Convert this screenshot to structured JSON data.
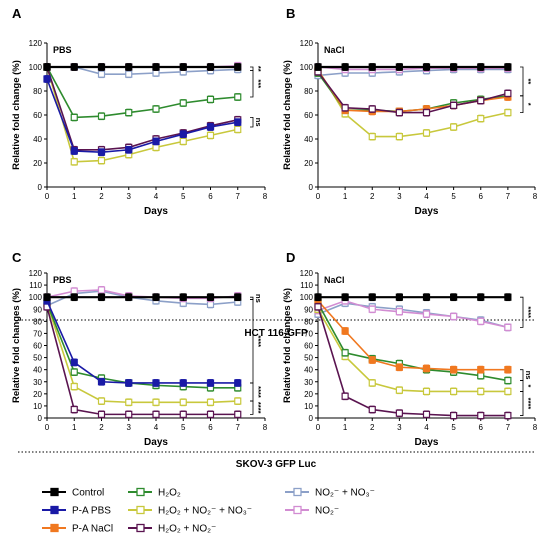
{
  "legend": [
    {
      "label": "Control",
      "color": "#000000"
    },
    {
      "label": "P-A PBS",
      "color": "#1a1aa6"
    },
    {
      "label": "P-A NaCl",
      "color": "#f07820"
    },
    {
      "label": "H₂O₂",
      "color": "#2e8b2e"
    },
    {
      "label": "H₂O₂ + NO₂⁻ + NO₃⁻",
      "color": "#c8c83c"
    },
    {
      "label": "H₂O₂ + NO₂⁻",
      "color": "#5a1450"
    },
    {
      "label": "NO₂⁻ + NO₃⁻",
      "color": "#8ca0c8"
    },
    {
      "label": "NO₂⁻",
      "color": "#d28cd2"
    }
  ],
  "sections": [
    {
      "label": "HCT 116-GFP"
    },
    {
      "label": "SKOV-3 GFP Luc"
    }
  ],
  "chart_data": [
    {
      "panel": "A",
      "condition": "PBS",
      "type": "line",
      "xlabel": "Days",
      "ylabel": "Relative fold change (%)",
      "xlim": [
        0,
        8
      ],
      "ylim": [
        0,
        120
      ],
      "xticks": [
        0,
        1,
        2,
        3,
        4,
        5,
        6,
        7,
        8
      ],
      "yticks": [
        0,
        20,
        40,
        60,
        80,
        100,
        120
      ],
      "x": [
        0,
        1,
        2,
        3,
        4,
        5,
        6,
        7
      ],
      "series": [
        {
          "name": "Control",
          "values": [
            100,
            100,
            100,
            100,
            100,
            100,
            100,
            100
          ]
        },
        {
          "name": "P-A PBS",
          "values": [
            90,
            30,
            29,
            31,
            38,
            44,
            50,
            54
          ]
        },
        {
          "name": "H₂O₂",
          "values": [
            100,
            58,
            59,
            62,
            65,
            70,
            73,
            75
          ]
        },
        {
          "name": "H₂O₂ + NO₂⁻ + NO₃⁻",
          "values": [
            100,
            21,
            22,
            27,
            33,
            38,
            43,
            48
          ]
        },
        {
          "name": "H₂O₂ + NO₂⁻",
          "values": [
            100,
            31,
            31,
            33,
            40,
            45,
            51,
            56
          ]
        },
        {
          "name": "NO₂⁻ + NO₃⁻",
          "values": [
            100,
            100,
            94,
            94,
            95,
            96,
            97,
            98
          ]
        },
        {
          "name": "NO₂⁻",
          "values": [
            100,
            100,
            100,
            100,
            100,
            100,
            100,
            101
          ]
        }
      ],
      "significance": [
        {
          "label": "**",
          "y_from": 100,
          "y_to": 97
        },
        {
          "label": "***",
          "y_from": 97,
          "y_to": 75
        },
        {
          "label": "ns",
          "y_from": 58,
          "y_to": 50
        }
      ]
    },
    {
      "panel": "B",
      "condition": "NaCl",
      "type": "line",
      "xlabel": "Days",
      "ylabel": "Relative fold change (%)",
      "xlim": [
        0,
        8
      ],
      "ylim": [
        0,
        120
      ],
      "xticks": [
        0,
        1,
        2,
        3,
        4,
        5,
        6,
        7,
        8
      ],
      "yticks": [
        0,
        20,
        40,
        60,
        80,
        100,
        120
      ],
      "x": [
        0,
        1,
        2,
        3,
        4,
        5,
        6,
        7
      ],
      "series": [
        {
          "name": "Control",
          "values": [
            100,
            100,
            100,
            100,
            100,
            100,
            100,
            100
          ]
        },
        {
          "name": "P-A NaCl",
          "values": [
            97,
            64,
            63,
            63,
            65,
            68,
            72,
            75
          ]
        },
        {
          "name": "H₂O₂",
          "values": [
            95,
            64,
            64,
            63,
            65,
            70,
            73,
            76
          ]
        },
        {
          "name": "H₂O₂ + NO₂⁻ + NO₃⁻",
          "values": [
            98,
            61,
            42,
            42,
            45,
            50,
            57,
            62
          ]
        },
        {
          "name": "H₂O₂ + NO₂⁻",
          "values": [
            96,
            66,
            65,
            62,
            62,
            68,
            72,
            78
          ]
        },
        {
          "name": "NO₂⁻ + NO₃⁻",
          "values": [
            93,
            95,
            95,
            96,
            97,
            98,
            98,
            98
          ]
        },
        {
          "name": "NO₂⁻",
          "values": [
            100,
            98,
            98,
            98,
            99,
            99,
            99,
            99
          ]
        }
      ],
      "significance": [
        {
          "label": "**",
          "y_from": 100,
          "y_to": 76
        },
        {
          "label": "*",
          "y_from": 76,
          "y_to": 62
        }
      ]
    },
    {
      "panel": "C",
      "condition": "PBS",
      "type": "line",
      "xlabel": "Days",
      "ylabel": "Relative fold changes (%)",
      "xlim": [
        0,
        8
      ],
      "ylim": [
        0,
        120
      ],
      "xticks": [
        0,
        1,
        2,
        3,
        4,
        5,
        6,
        7,
        8
      ],
      "yticks": [
        0,
        10,
        20,
        30,
        40,
        50,
        60,
        70,
        80,
        90,
        100,
        110,
        120
      ],
      "x": [
        0,
        1,
        2,
        3,
        4,
        5,
        6,
        7
      ],
      "series": [
        {
          "name": "Control",
          "values": [
            100,
            100,
            100,
            100,
            100,
            100,
            100,
            100
          ]
        },
        {
          "name": "P-A PBS",
          "values": [
            97,
            46,
            30,
            29,
            29,
            29,
            29,
            29
          ]
        },
        {
          "name": "H₂O₂",
          "values": [
            95,
            38,
            33,
            29,
            27,
            26,
            25,
            25
          ]
        },
        {
          "name": "H₂O₂ + NO₂⁻ + NO₃⁻",
          "values": [
            95,
            26,
            14,
            13,
            13,
            13,
            13,
            14
          ]
        },
        {
          "name": "H₂O₂ + NO₂⁻",
          "values": [
            92,
            7,
            3,
            3,
            3,
            3,
            3,
            3
          ]
        },
        {
          "name": "NO₂⁻ + NO₃⁻",
          "values": [
            93,
            103,
            105,
            100,
            97,
            95,
            94,
            96
          ]
        },
        {
          "name": "NO₂⁻",
          "values": [
            100,
            105,
            106,
            101,
            100,
            99,
            99,
            101
          ]
        }
      ],
      "significance": [
        {
          "label": "ns",
          "y_from": 100,
          "y_to": 98
        },
        {
          "label": "****",
          "y_from": 98,
          "y_to": 29
        },
        {
          "label": "****",
          "y_from": 29,
          "y_to": 14
        },
        {
          "label": "****",
          "y_from": 14,
          "y_to": 3
        }
      ]
    },
    {
      "panel": "D",
      "condition": "NaCl",
      "type": "line",
      "xlabel": "Days",
      "ylabel": "Relative fold changes (%)",
      "xlim": [
        0,
        8
      ],
      "ylim": [
        0,
        120
      ],
      "xticks": [
        0,
        1,
        2,
        3,
        4,
        5,
        6,
        7,
        8
      ],
      "yticks": [
        0,
        10,
        20,
        30,
        40,
        50,
        60,
        70,
        80,
        90,
        100,
        110,
        120
      ],
      "x": [
        0,
        1,
        2,
        3,
        4,
        5,
        6,
        7
      ],
      "series": [
        {
          "name": "Control",
          "values": [
            100,
            100,
            100,
            100,
            100,
            100,
            100,
            100
          ]
        },
        {
          "name": "P-A NaCl",
          "values": [
            97,
            72,
            48,
            42,
            41,
            40,
            40,
            40
          ]
        },
        {
          "name": "H₂O₂",
          "values": [
            95,
            54,
            49,
            45,
            40,
            38,
            35,
            31
          ]
        },
        {
          "name": "H₂O₂ + NO₂⁻ + NO₃⁻",
          "values": [
            90,
            51,
            29,
            23,
            22,
            22,
            22,
            22
          ]
        },
        {
          "name": "H₂O₂ + NO₂⁻",
          "values": [
            92,
            18,
            7,
            4,
            3,
            2,
            2,
            2
          ]
        },
        {
          "name": "NO₂⁻ + NO₃⁻",
          "values": [
            86,
            95,
            92,
            90,
            87,
            84,
            81,
            75
          ]
        },
        {
          "name": "NO₂⁻",
          "values": [
            89,
            97,
            90,
            88,
            86,
            84,
            80,
            75
          ]
        }
      ],
      "significance": [
        {
          "label": "****",
          "y_from": 100,
          "y_to": 75
        },
        {
          "label": "ns",
          "y_from": 40,
          "y_to": 31
        },
        {
          "label": "*",
          "y_from": 31,
          "y_to": 22
        },
        {
          "label": "****",
          "y_from": 22,
          "y_to": 2
        }
      ]
    }
  ]
}
